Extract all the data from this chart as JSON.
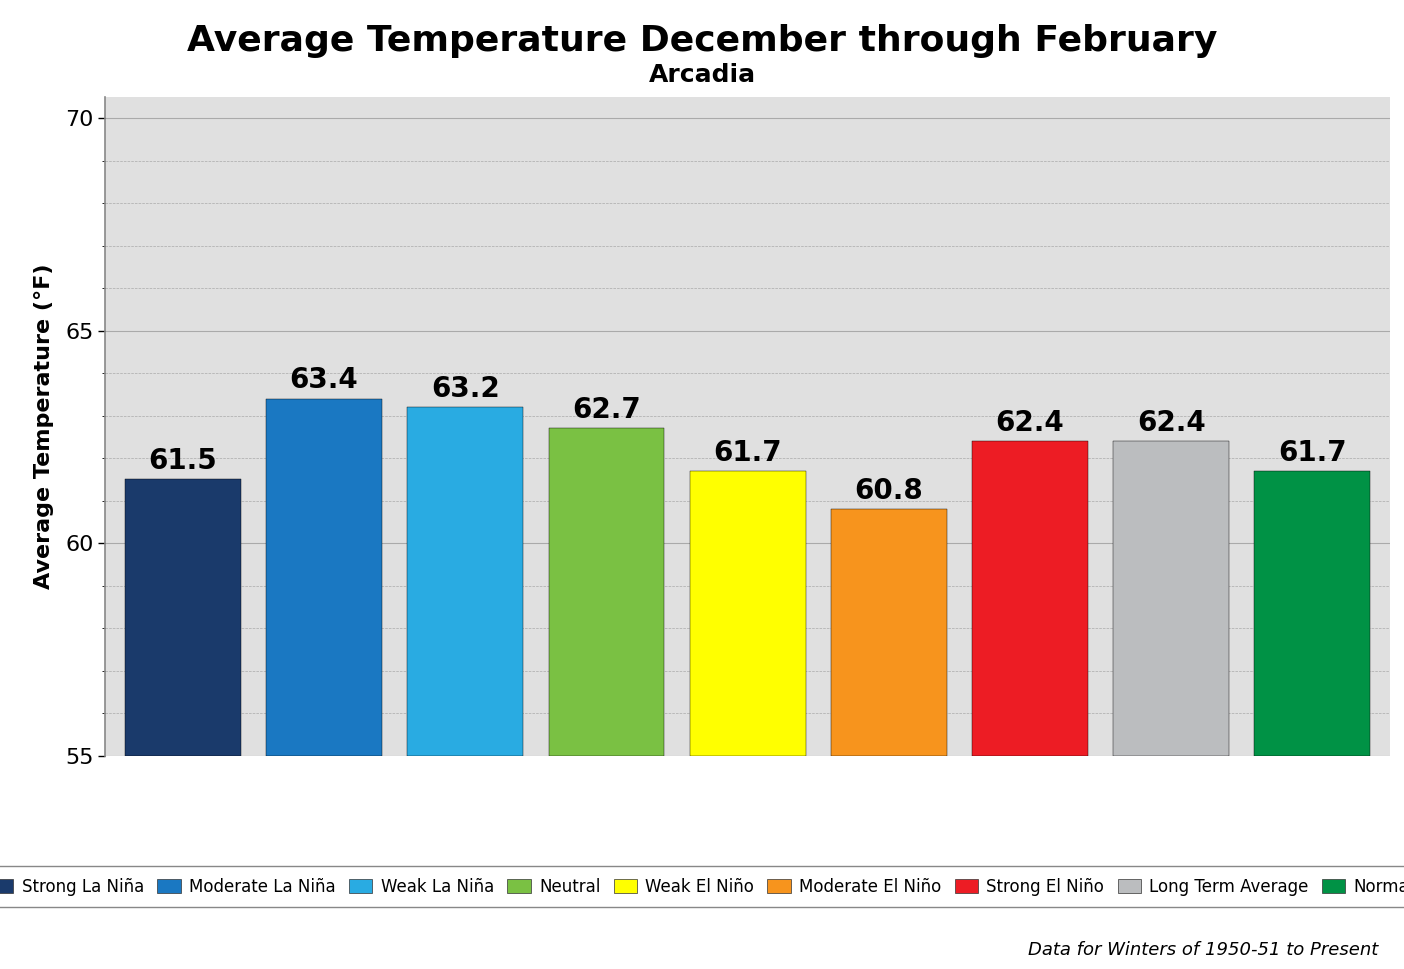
{
  "title": "Average Temperature December through February",
  "subtitle": "Arcadia",
  "ylabel": "Average Temperature (°F)",
  "ylim": [
    55,
    70.5
  ],
  "yticks": [
    55,
    60,
    65,
    70
  ],
  "categories": [
    "Strong La Niña",
    "Moderate La Niña",
    "Weak La Niña",
    "Neutral",
    "Weak El Niño",
    "Moderate El Niño",
    "Strong El Niño",
    "Long Term Average",
    "Normal"
  ],
  "values": [
    61.5,
    63.4,
    63.2,
    62.7,
    61.7,
    60.8,
    62.4,
    62.4,
    61.7
  ],
  "bar_colors": [
    "#1a3a6b",
    "#1a78c2",
    "#29abe2",
    "#7ac143",
    "#ffff00",
    "#f7941d",
    "#ed1c24",
    "#bbbdbf",
    "#009245"
  ],
  "plot_bg_color": "#e0e0e0",
  "fig_bg_color": "#ffffff",
  "grid_color": "#aaaaaa",
  "title_fontsize": 26,
  "subtitle_fontsize": 18,
  "ylabel_fontsize": 16,
  "bar_label_fontsize": 20,
  "legend_fontsize": 12,
  "tick_fontsize": 16,
  "footnote": "Data for Winters of 1950-51 to Present",
  "footnote_fontsize": 13
}
